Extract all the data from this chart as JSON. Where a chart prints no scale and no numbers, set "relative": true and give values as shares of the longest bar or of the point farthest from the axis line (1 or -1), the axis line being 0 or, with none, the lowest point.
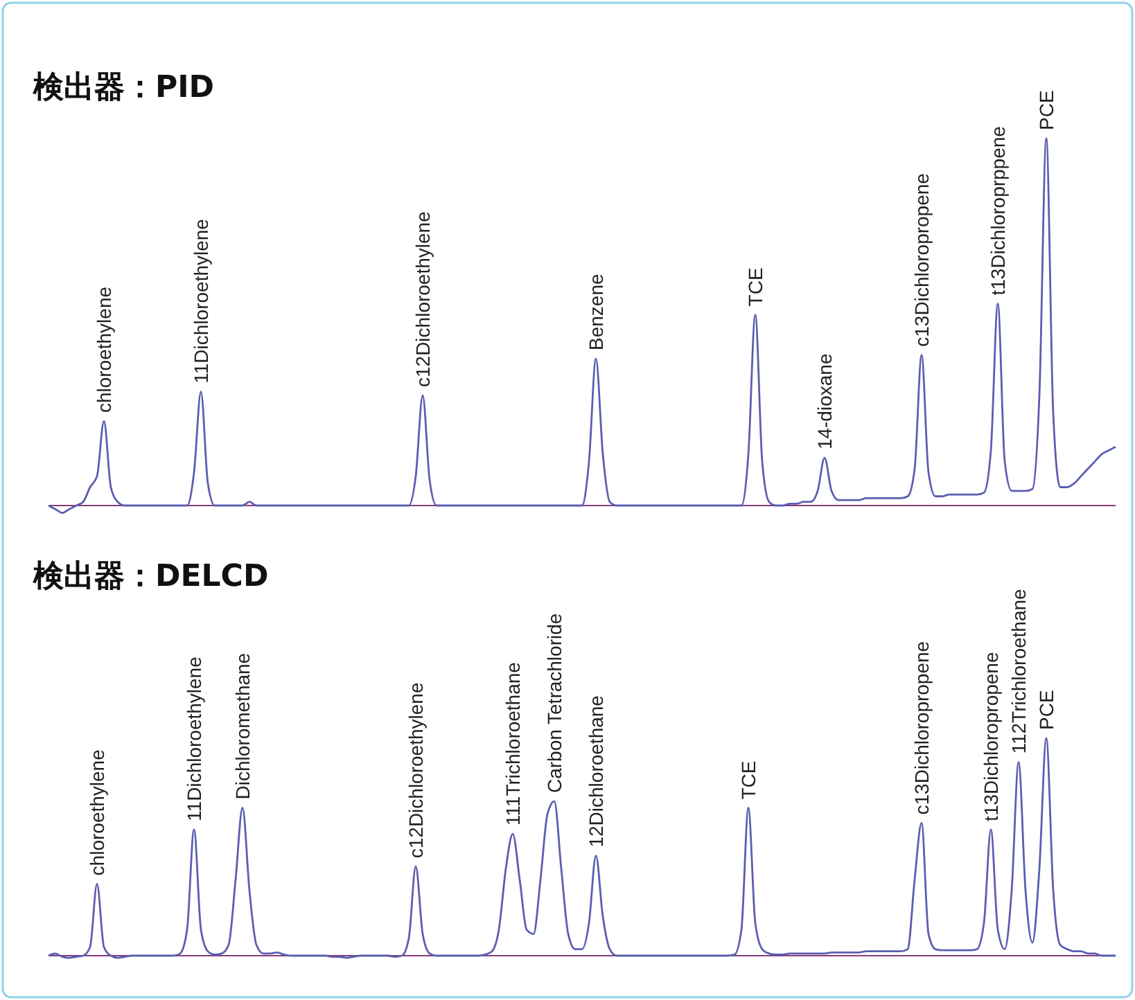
{
  "chart_data": [
    {
      "type": "line",
      "title": "検出器：PID",
      "relative": true,
      "color": "#5a5eb0",
      "ref_lines": [
        {
          "axis": "y",
          "value": 0,
          "color": "#8a3a7a"
        }
      ],
      "categories": [
        null,
        null,
        null,
        null,
        null,
        null,
        null,
        null,
        null,
        null,
        null,
        null,
        null,
        null,
        null,
        null,
        null,
        null,
        null,
        null,
        null,
        null,
        null,
        null,
        null,
        null,
        null,
        null,
        null,
        null,
        null,
        null,
        null,
        null,
        null,
        null,
        null,
        null,
        null,
        null,
        null,
        null,
        null,
        null,
        null,
        null,
        null,
        null,
        null,
        null,
        null,
        null,
        null,
        null,
        null,
        null,
        null,
        null,
        null,
        null,
        null,
        null,
        null,
        null,
        null,
        null,
        null,
        null,
        null,
        null,
        null,
        null,
        null,
        null,
        null,
        null,
        null,
        null,
        null,
        null,
        null,
        null,
        null,
        null,
        null,
        null,
        null,
        null,
        null,
        null,
        null,
        null,
        null,
        null,
        null,
        null,
        null,
        null,
        null,
        null,
        null,
        null,
        null,
        null,
        null,
        null,
        null,
        null,
        null,
        null,
        null,
        null,
        null,
        null,
        null,
        null,
        null,
        null,
        null,
        null,
        null,
        null,
        null,
        null,
        null,
        null,
        null,
        null,
        null,
        null,
        null,
        null,
        null,
        null,
        null,
        null,
        null,
        null,
        null,
        null,
        null,
        null,
        null,
        null,
        null,
        null,
        null,
        null,
        null,
        null,
        null,
        null,
        null,
        null,
        null
      ],
      "values": [
        0,
        -0.01,
        -0.02,
        -0.01,
        0,
        0.01,
        0.05,
        0.08,
        0.23,
        0.05,
        0.01,
        0,
        0,
        0,
        0,
        0,
        0,
        0,
        0,
        0,
        0,
        0.09,
        0.31,
        0.06,
        0,
        0,
        0,
        0,
        0,
        0.01,
        0,
        0,
        0,
        0,
        0,
        0,
        0,
        0,
        0,
        0,
        0,
        0,
        0,
        0,
        0,
        0,
        0,
        0,
        0,
        0,
        0,
        0,
        0,
        0.08,
        0.3,
        0.07,
        0,
        0,
        0,
        0,
        0,
        0,
        0,
        0,
        0,
        0,
        0,
        0,
        0,
        0,
        0,
        0,
        0,
        0,
        0,
        0,
        0,
        0,
        0.12,
        0.4,
        0.14,
        0.01,
        0,
        0,
        0,
        0,
        0,
        0,
        0,
        0,
        0,
        0,
        0,
        0,
        0,
        0,
        0,
        0,
        0,
        0,
        0,
        0.14,
        0.52,
        0.12,
        0.01,
        0,
        0,
        0.005,
        0.005,
        0.01,
        0.01,
        0.04,
        0.13,
        0.04,
        0.015,
        0.015,
        0.015,
        0.015,
        0.02,
        0.02,
        0.02,
        0.02,
        0.02,
        0.02,
        0.025,
        0.1,
        0.41,
        0.09,
        0.025,
        0.025,
        0.03,
        0.03,
        0.03,
        0.03,
        0.03,
        0.035,
        0.15,
        0.55,
        0.12,
        0.04,
        0.04,
        0.04,
        0.045,
        0.3,
        1,
        0.25,
        0.05,
        0.05,
        0.06,
        0.08,
        0.1,
        0.12,
        0.14,
        0.15,
        0.16
      ],
      "annotations": [
        "chloroethylene",
        "11Dichloroethylene",
        "c12Dichloroethylene",
        "Benzene",
        "TCE",
        "14-dioxane",
        "c13Dichloropropene",
        "t13Dichloroprppene",
        "PCE"
      ]
    },
    {
      "type": "line",
      "title": "検出器：DELCD",
      "relative": true,
      "color": "#5a5eb0",
      "ref_lines": [
        {
          "axis": "y",
          "value": 0,
          "color": "#8a3a7a"
        }
      ],
      "categories": [
        null,
        null,
        null,
        null,
        null,
        null,
        null,
        null,
        null,
        null,
        null,
        null,
        null,
        null,
        null,
        null,
        null,
        null,
        null,
        null,
        null,
        null,
        null,
        null,
        null,
        null,
        null,
        null,
        null,
        null,
        null,
        null,
        null,
        null,
        null,
        null,
        null,
        null,
        null,
        null,
        null,
        null,
        null,
        null,
        null,
        null,
        null,
        null,
        null,
        null,
        null,
        null,
        null,
        null,
        null,
        null,
        null,
        null,
        null,
        null,
        null,
        null,
        null,
        null,
        null,
        null,
        null,
        null,
        null,
        null,
        null,
        null,
        null,
        null,
        null,
        null,
        null,
        null,
        null,
        null,
        null,
        null,
        null,
        null,
        null,
        null,
        null,
        null,
        null,
        null,
        null,
        null,
        null,
        null,
        null,
        null,
        null,
        null,
        null,
        null,
        null,
        null,
        null,
        null,
        null,
        null,
        null,
        null,
        null,
        null,
        null,
        null,
        null,
        null,
        null,
        null,
        null,
        null,
        null,
        null,
        null,
        null,
        null,
        null,
        null,
        null,
        null,
        null,
        null,
        null,
        null,
        null,
        null,
        null,
        null,
        null,
        null,
        null,
        null,
        null,
        null,
        null,
        null,
        null,
        null,
        null,
        null,
        null,
        null,
        null,
        null,
        null,
        null,
        null,
        null
      ],
      "values": [
        0,
        0.01,
        -0.005,
        -0.01,
        -0.005,
        0,
        0.04,
        0.33,
        0.04,
        0,
        -0.01,
        -0.005,
        0,
        0,
        0,
        0,
        0,
        0,
        0,
        0.01,
        0.12,
        0.58,
        0.12,
        0.02,
        0.005,
        0.01,
        0.05,
        0.35,
        0.68,
        0.3,
        0.05,
        0.01,
        0.01,
        0.015,
        0.005,
        0,
        0,
        0,
        0,
        0,
        0,
        -0.005,
        -0.005,
        -0.01,
        -0.005,
        0,
        0,
        0,
        0,
        0,
        -0.005,
        0,
        0.08,
        0.41,
        0.1,
        0.01,
        0,
        0,
        0,
        0,
        0,
        0,
        0,
        0.005,
        0.02,
        0.12,
        0.4,
        0.56,
        0.35,
        0.12,
        0.1,
        0.35,
        0.65,
        0.71,
        0.4,
        0.1,
        0.03,
        0.03,
        0.15,
        0.46,
        0.18,
        0.03,
        0,
        0,
        0,
        0,
        0,
        0,
        0,
        0,
        0,
        0,
        0,
        0,
        0,
        0,
        0,
        0,
        0,
        0.005,
        0.12,
        0.68,
        0.15,
        0.03,
        0.01,
        0.005,
        0.005,
        0.01,
        0.01,
        0.01,
        0.01,
        0.01,
        0.01,
        0.015,
        0.015,
        0.015,
        0.015,
        0.015,
        0.02,
        0.02,
        0.02,
        0.02,
        0.02,
        0.02,
        0.03,
        0.35,
        0.61,
        0.1,
        0.03,
        0.025,
        0.025,
        0.025,
        0.025,
        0.025,
        0.03,
        0.15,
        0.58,
        0.12,
        0.03,
        0.3,
        0.89,
        0.3,
        0.06,
        0.4,
        1,
        0.3,
        0.05,
        0.03,
        0.02,
        0.02,
        0.01,
        0.01,
        0,
        0,
        0
      ],
      "annotations": [
        "chloroethylene",
        "11Dichloroethylene",
        "Dichloromethane",
        "c12Dichloroethylene",
        "111Trichloroethane",
        "Carbon Tetrachloride",
        "12Dichloroethane",
        "TCE",
        "c13Dichloropropene",
        "t13Dichloropropene",
        "112Trichloroethane",
        "PCE"
      ]
    }
  ]
}
